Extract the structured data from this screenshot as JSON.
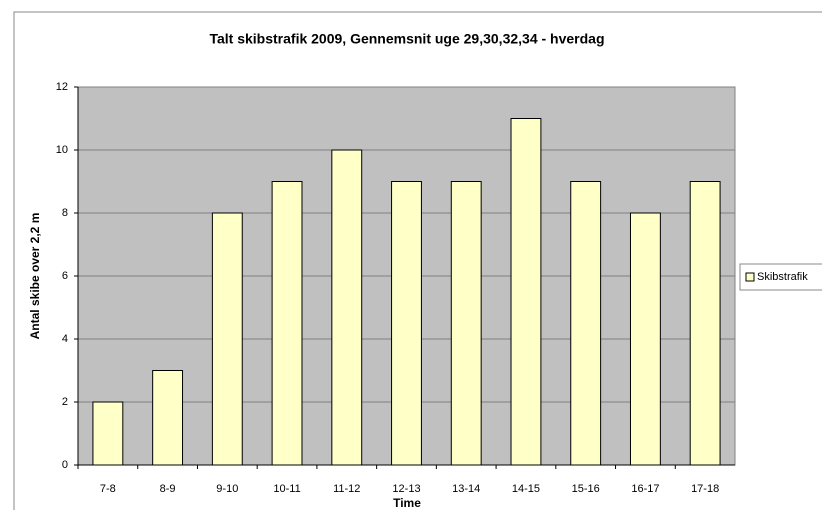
{
  "chart_data": {
    "type": "bar",
    "title": "Talt skibstrafik 2009, Gennemsnit uge 29,30,32,34 - hverdag",
    "x_label": "Time",
    "y_label": "Antal skibe over 2,2 m",
    "categories": [
      "7-8",
      "8-9",
      "9-10",
      "10-11",
      "11-12",
      "12-13",
      "13-14",
      "14-15",
      "15-16",
      "16-17",
      "17-18"
    ],
    "series": [
      {
        "name": "Skibstrafik",
        "color": "#ffffc8",
        "values": [
          2,
          3,
          8,
          9,
          10,
          9,
          9,
          11,
          9,
          8,
          9
        ]
      }
    ],
    "ylim": [
      0,
      12
    ],
    "yticks": [
      0,
      2,
      4,
      6,
      8,
      10,
      12
    ],
    "grid": true,
    "legend": "right"
  }
}
